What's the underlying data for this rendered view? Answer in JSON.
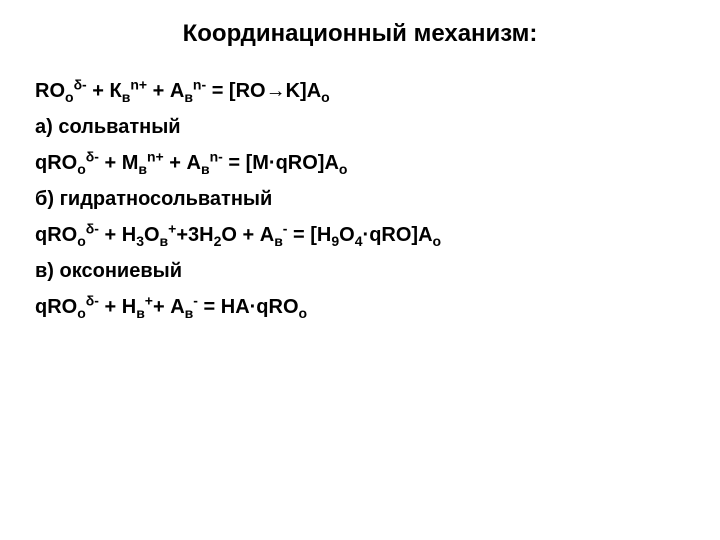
{
  "title": {
    "text": "Координационный механизм:",
    "fontsize": 24,
    "color": "#000000"
  },
  "body": {
    "fontsize": 20,
    "color": "#000000"
  },
  "lines": {
    "eq1": {
      "p1": "RO",
      "sub1": "о",
      "sup1": "δ-",
      "p2": " + К",
      "sub2": "в",
      "sup2": "n+",
      "p3": " + А",
      "sub3": "в",
      "sup3": "n-",
      "p4": " = [RO→K]A",
      "sub4": "о"
    },
    "labelA": "а) сольватный",
    "eq2": {
      "p1": "qRO",
      "sub1": "о",
      "sup1": "δ-",
      "p2": " + М",
      "sub2": "в",
      "sup2": "n+",
      "p3": " + А",
      "sub3": "в",
      "sup3": "n-",
      "p4": " = [М·qRO]A",
      "sub4": "о"
    },
    "labelB": "б) гидратносольватный",
    "eq3": {
      "p1": "qRO",
      "sub1": "о",
      "sup1": "δ-",
      "p2": " + Н",
      "sub2a": "3",
      "p2a": "О",
      "sub2b": "в",
      "sup2": "+",
      "p3": "+3Н",
      "sub3": "2",
      "p3a": "О + А",
      "sub3a": "в",
      "sup3": "-",
      "p4": " = [Н",
      "sub4a": "9",
      "p4a": "О",
      "sub4b": "4",
      "p4b": "·qRO]A",
      "sub4c": "о"
    },
    "labelC": "в) оксониевый",
    "eq4": {
      "p1": "qRO",
      "sub1": "о",
      "sup1": "δ-",
      "p2": " + Н",
      "sub2": "в",
      "sup2": "+",
      "p3": "+ А",
      "sub3": "в",
      "sup3": "-",
      "p4": " = НА·qRO",
      "sub4": "о"
    }
  }
}
